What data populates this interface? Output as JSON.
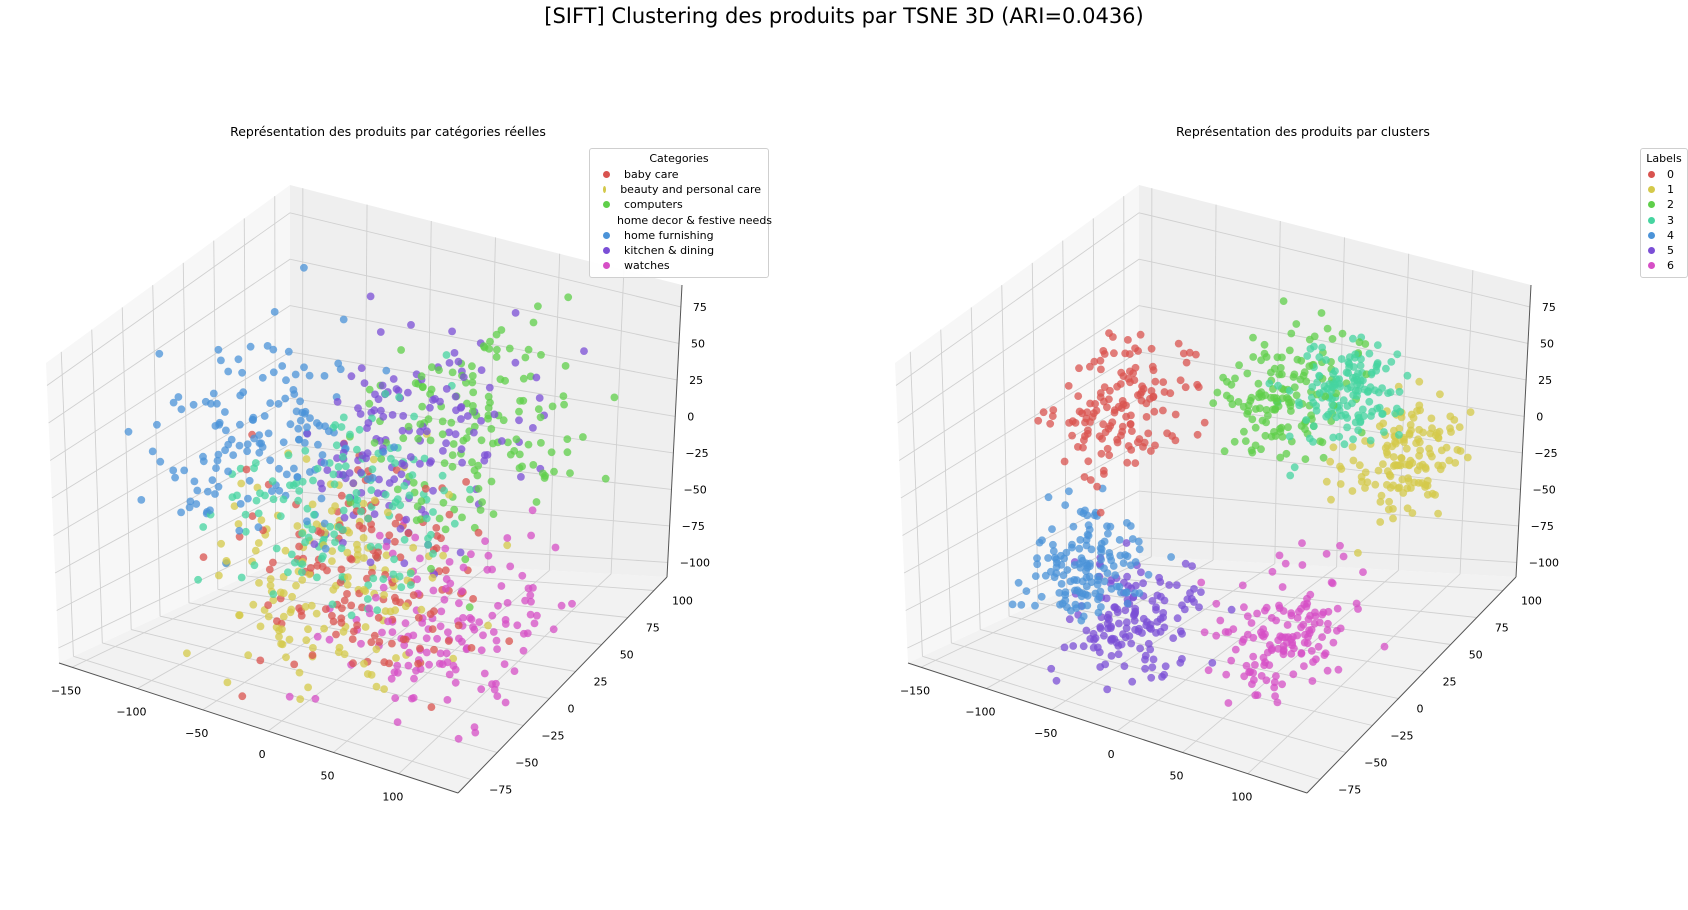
{
  "figure": {
    "suptitle": "[SIFT] Clustering des produits par TSNE 3D (ARI=0.0436)"
  },
  "chart_data": [
    {
      "type": "scatter",
      "projection": "3d",
      "title": "Représentation des produits par catégories réelles",
      "xlabel": "",
      "ylabel": "",
      "zlabel": "",
      "xlim": [
        -150,
        130
      ],
      "ylim": [
        -90,
        105
      ],
      "zlim": [
        -105,
        95
      ],
      "xticks": [
        "−150",
        "−100",
        "−50",
        "0",
        "50",
        "100"
      ],
      "yticks": [
        "−75",
        "−50",
        "−25",
        "0",
        "25",
        "50",
        "75",
        "100"
      ],
      "zticks": [
        "−100",
        "−75",
        "−50",
        "−25",
        "0",
        "25",
        "50",
        "75"
      ],
      "legend": {
        "title": "Categories",
        "placement": "top-right",
        "entries": [
          "baby care",
          "beauty and personal care",
          "computers",
          "home decor & festive needs",
          "home furnishing",
          "kitchen & dining",
          "watches"
        ]
      },
      "colors": [
        "#d9534f",
        "#d4c94a",
        "#5fcf4a",
        "#46d4a0",
        "#4b93d8",
        "#7b4fd6",
        "#d64fc6"
      ],
      "grid": true,
      "series": [
        {
          "name": "baby care",
          "approx_count": 150,
          "centroid": [
            10,
            -20,
            -35
          ],
          "spread": 60
        },
        {
          "name": "beauty and personal care",
          "approx_count": 150,
          "centroid": [
            -10,
            -30,
            -40
          ],
          "spread": 60
        },
        {
          "name": "computers",
          "approx_count": 150,
          "centroid": [
            30,
            60,
            10
          ],
          "spread": 60
        },
        {
          "name": "home decor & festive needs",
          "approx_count": 150,
          "centroid": [
            -40,
            20,
            -30
          ],
          "spread": 60
        },
        {
          "name": "home furnishing",
          "approx_count": 150,
          "centroid": [
            -90,
            10,
            10
          ],
          "spread": 55
        },
        {
          "name": "kitchen & dining",
          "approx_count": 150,
          "centroid": [
            0,
            40,
            10
          ],
          "spread": 60
        },
        {
          "name": "watches",
          "approx_count": 150,
          "centroid": [
            70,
            -20,
            -60
          ],
          "spread": 55
        }
      ]
    },
    {
      "type": "scatter",
      "projection": "3d",
      "title": "Représentation des produits par clusters",
      "xlabel": "",
      "ylabel": "",
      "zlabel": "",
      "xlim": [
        -150,
        130
      ],
      "ylim": [
        -90,
        105
      ],
      "zlim": [
        -105,
        95
      ],
      "xticks": [
        "−150",
        "−100",
        "−50",
        "0",
        "50",
        "100"
      ],
      "yticks": [
        "−75",
        "−50",
        "−25",
        "0",
        "25",
        "50",
        "75",
        "100"
      ],
      "zticks": [
        "−100",
        "−75",
        "−50",
        "−25",
        "0",
        "25",
        "50",
        "75"
      ],
      "legend": {
        "title": "Labels",
        "placement": "top-right",
        "entries": [
          "0",
          "1",
          "2",
          "3",
          "4",
          "5",
          "6"
        ]
      },
      "colors": [
        "#d9534f",
        "#d4c94a",
        "#5fcf4a",
        "#46d4a0",
        "#4b93d8",
        "#7b4fd6",
        "#d64fc6"
      ],
      "grid": true,
      "series": [
        {
          "name": "0",
          "approx_count": 150,
          "centroid": [
            -110,
            40,
            10
          ],
          "spread": 35
        },
        {
          "name": "1",
          "approx_count": 150,
          "centroid": [
            80,
            60,
            0
          ],
          "spread": 30
        },
        {
          "name": "2",
          "approx_count": 150,
          "centroid": [
            0,
            50,
            30
          ],
          "spread": 35
        },
        {
          "name": "3",
          "approx_count": 150,
          "centroid": [
            20,
            80,
            20
          ],
          "spread": 30
        },
        {
          "name": "4",
          "approx_count": 150,
          "centroid": [
            -80,
            -20,
            -55
          ],
          "spread": 30
        },
        {
          "name": "5",
          "approx_count": 150,
          "centroid": [
            -30,
            -40,
            -70
          ],
          "spread": 35
        },
        {
          "name": "6",
          "approx_count": 150,
          "centroid": [
            60,
            -20,
            -65
          ],
          "spread": 35
        }
      ]
    }
  ]
}
